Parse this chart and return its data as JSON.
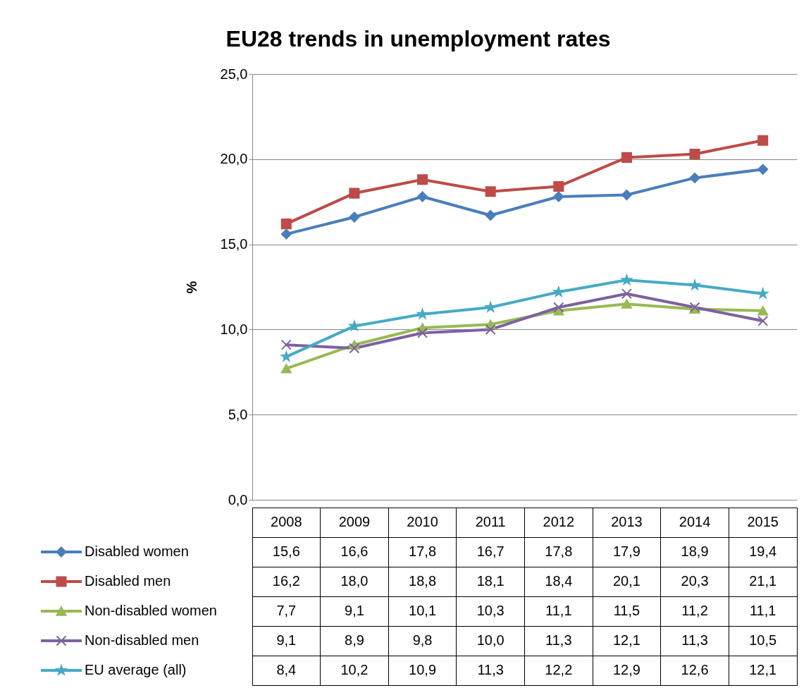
{
  "chart_data": {
    "type": "line",
    "title": "EU28 trends in unemployment rates",
    "ylabel": "%",
    "categories": [
      "2008",
      "2009",
      "2010",
      "2011",
      "2012",
      "2013",
      "2014",
      "2015"
    ],
    "ylim": [
      0,
      25
    ],
    "yticks": [
      {
        "value": 0,
        "label": "0,0"
      },
      {
        "value": 5,
        "label": "5,0"
      },
      {
        "value": 10,
        "label": "10,0"
      },
      {
        "value": 15,
        "label": "15,0"
      },
      {
        "value": 20,
        "label": "20,0"
      },
      {
        "value": 25,
        "label": "25,0"
      }
    ],
    "grid": "y",
    "legend": "bottom left",
    "line_style": "solid",
    "series": [
      {
        "name": "Disabled women",
        "color": "#4a7ebb",
        "marker": "diamond",
        "values": [
          15.6,
          16.6,
          17.8,
          16.7,
          17.8,
          17.9,
          18.9,
          19.4
        ],
        "value_labels": [
          "15,6",
          "16,6",
          "17,8",
          "16,7",
          "17,8",
          "17,9",
          "18,9",
          "19,4"
        ]
      },
      {
        "name": "Disabled men",
        "color": "#be4b48",
        "marker": "square",
        "values": [
          16.2,
          18.0,
          18.8,
          18.1,
          18.4,
          20.1,
          20.3,
          21.1
        ],
        "value_labels": [
          "16,2",
          "18,0",
          "18,8",
          "18,1",
          "18,4",
          "20,1",
          "20,3",
          "21,1"
        ]
      },
      {
        "name": "Non-disabled women",
        "color": "#98b954",
        "marker": "triangle",
        "values": [
          7.7,
          9.1,
          10.1,
          10.3,
          11.1,
          11.5,
          11.2,
          11.1
        ],
        "value_labels": [
          "7,7",
          "9,1",
          "10,1",
          "10,3",
          "11,1",
          "11,5",
          "11,2",
          "11,1"
        ]
      },
      {
        "name": "Non-disabled men",
        "color": "#7d60a0",
        "marker": "cross",
        "values": [
          9.1,
          8.9,
          9.8,
          10.0,
          11.3,
          12.1,
          11.3,
          10.5
        ],
        "value_labels": [
          "9,1",
          "8,9",
          "9,8",
          "10,0",
          "11,3",
          "12,1",
          "11,3",
          "10,5"
        ]
      },
      {
        "name": "EU average (all)",
        "color": "#46aac5",
        "marker": "star",
        "values": [
          8.4,
          10.2,
          10.9,
          11.3,
          12.2,
          12.9,
          12.6,
          12.1
        ],
        "value_labels": [
          "8,4",
          "10,2",
          "10,9",
          "11,3",
          "12,2",
          "12,9",
          "12,6",
          "12,1"
        ]
      }
    ]
  }
}
